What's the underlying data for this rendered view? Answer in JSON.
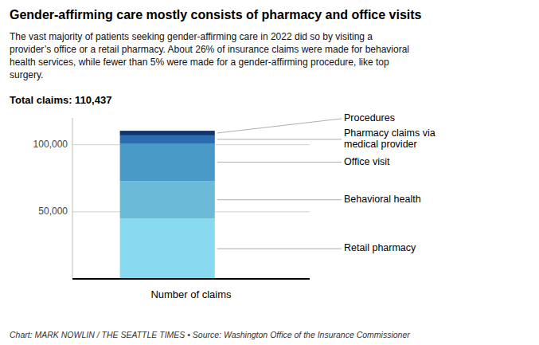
{
  "chart_data": {
    "type": "bar",
    "stacked": true,
    "title": "Gender-affirming care mostly consists of pharmacy and office visits",
    "subtitle": "The vast majority of patients seeking gender-affirming care in 2022 did so by visiting a\nprovider’s office or a retail pharmacy. About 26% of insurance claims were made for behavioral\nhealth services, while fewer than 5% were made for a gender-affirming procedure, like top\nsurgery.",
    "annotations": [
      "Total claims: 110,437",
      "Chart: MARK NOWLIN / THE SEATTLE TIMES • Source: Washington Office of the Insurance Commissioner"
    ],
    "xlabel": "Number of claims",
    "categories": [
      null
    ],
    "series": [
      {
        "name": "Retail pharmacy",
        "color": "#87DAEF",
        "values": [
          45000
        ]
      },
      {
        "name": "Behavioral health",
        "color": "#6BBBD8",
        "values": [
          28000
        ]
      },
      {
        "name": "Office visit",
        "color": "#4A9AC8",
        "values": [
          28000
        ]
      },
      {
        "name": "Pharmacy claims via\nmedical provider",
        "color": "#2B6BB0",
        "values": [
          6000
        ]
      },
      {
        "name": "Procedures",
        "color": "#12336B",
        "values": [
          3437
        ]
      }
    ],
    "ylim": [
      0,
      120000
    ],
    "yticks": [
      {
        "value": 50000,
        "label": "50,000"
      },
      {
        "value": 100000,
        "label": "100,000"
      }
    ],
    "grid": true
  }
}
